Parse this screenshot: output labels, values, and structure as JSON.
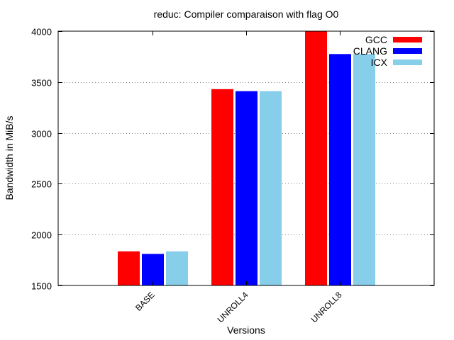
{
  "chart_data": {
    "type": "bar",
    "title": "reduc: Compiler comparaison with flag O0",
    "xlabel": "Versions",
    "ylabel": "Bandwidth in MiB/s",
    "categories": [
      "BASE",
      "UNROLL4",
      "UNROLL8"
    ],
    "ylim": [
      1500,
      4000
    ],
    "yticks": [
      1500,
      2000,
      2500,
      3000,
      3500,
      4000
    ],
    "grid": "horizontal dotted",
    "legend_position": "top-right",
    "series": [
      {
        "name": "GCC",
        "color": "#ff0000",
        "values": [
          1835,
          3430,
          4000
        ]
      },
      {
        "name": "CLANG",
        "color": "#0000ff",
        "values": [
          1810,
          3410,
          3775
        ]
      },
      {
        "name": "ICX",
        "color": "#87ceeb",
        "values": [
          1835,
          3410,
          3775
        ]
      }
    ]
  }
}
